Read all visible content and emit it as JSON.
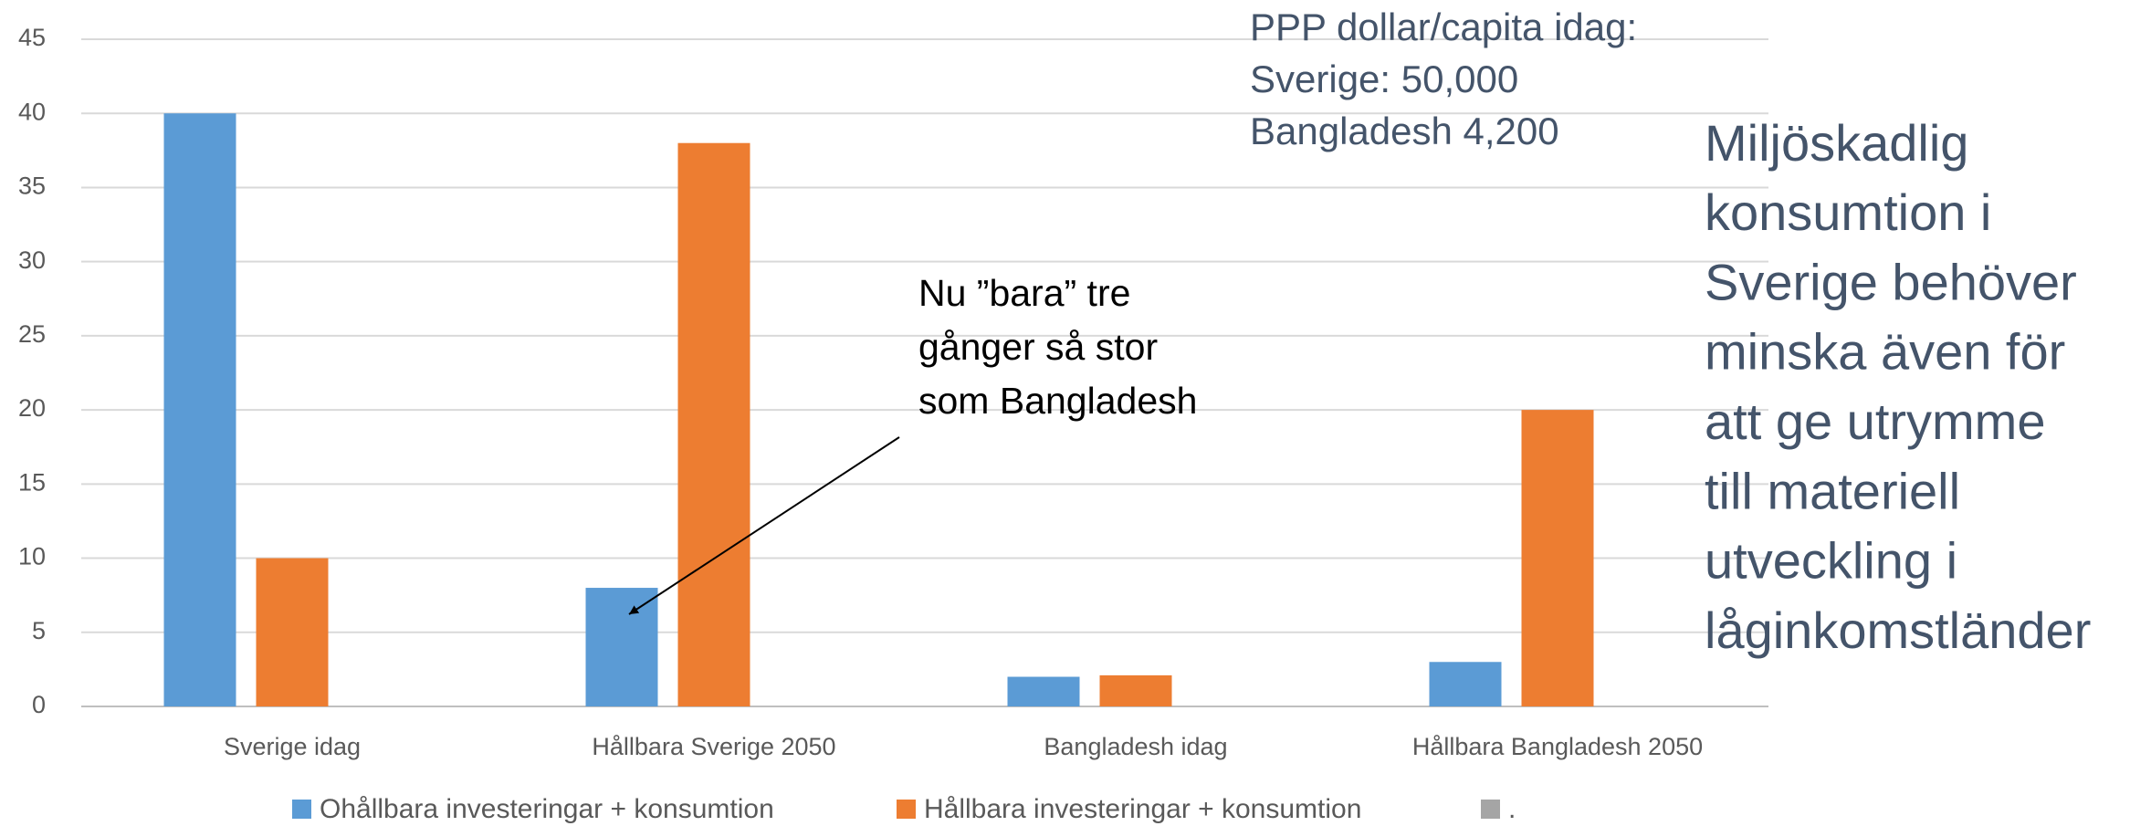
{
  "chart_data": {
    "type": "bar",
    "categories": [
      "Sverige idag",
      "Hållbara Sverige 2050",
      "Bangladesh idag",
      "Hållbara Bangladesh 2050"
    ],
    "series": [
      {
        "name": "Ohållbara investeringar + konsumtion",
        "color": "#5b9bd5",
        "values": [
          40,
          8,
          2,
          3
        ]
      },
      {
        "name": "Hållbara investeringar + konsumtion",
        "color": "#ed7d31",
        "values": [
          10,
          38,
          2.1,
          20
        ]
      },
      {
        "name": ".",
        "color": "#a5a5a5",
        "values": [
          null,
          null,
          null,
          null
        ]
      }
    ],
    "ylim": [
      0,
      45
    ],
    "yticks": [
      0,
      5,
      10,
      15,
      20,
      25,
      30,
      35,
      40,
      45
    ],
    "grid": true,
    "legend": "bottom",
    "annotations": {
      "ppp": [
        "PPP dollar/capita idag:",
        "Sverige: 50,000",
        "Bangladesh 4,200"
      ],
      "callout": [
        "Nu ”bara” tre",
        "gånger så stor",
        "som Bangladesh"
      ],
      "side": [
        "Miljöskadlig",
        "konsumtion i",
        "Sverige behöver",
        "minska även för",
        "att ge utrymme",
        "till materiell",
        "utveckling i",
        "låginkomstländer"
      ]
    }
  }
}
